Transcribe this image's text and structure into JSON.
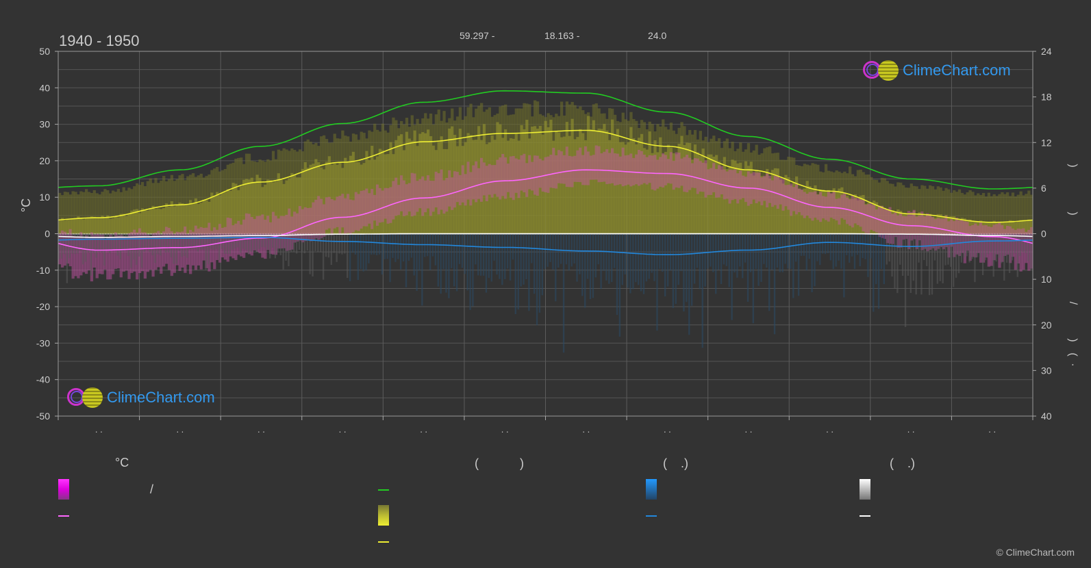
{
  "header": {
    "period": "1940 - 1950",
    "latitude": "59.297 -",
    "longitude": "18.163 -",
    "elevation": "24.0"
  },
  "brand": {
    "name": "ClimeChart.com",
    "copyright": "© ClimeChart.com"
  },
  "colors": {
    "background": "#333333",
    "daylight": "#22cc22",
    "sunshine": "#eeee33",
    "temp_mean": "#ff66ff",
    "precip": "#2288dd",
    "snow": "#ffffff",
    "brand": "#3399ee"
  },
  "chart_data": {
    "type": "line",
    "title": "1940 - 1950",
    "ylabel": "°C",
    "ylim": [
      -50,
      50
    ],
    "y_ticks": [
      "50",
      "40",
      "30",
      "20",
      "10",
      "0",
      "-10",
      "-20",
      "-30",
      "-40",
      "-50"
    ],
    "y2_ticks_top": [
      "24",
      "18",
      "12",
      "6",
      "0"
    ],
    "y2_ticks_bottom": [
      "0",
      "10",
      "20",
      "30",
      "40"
    ],
    "y2_labels": [
      ")",
      ")",
      "/",
      ")",
      "(",
      "·"
    ],
    "x_tick_labels": [
      ". .",
      ". .",
      ". .",
      ". .",
      ". .",
      ". .",
      ". .",
      ". .",
      ". .",
      ". .",
      ". .",
      ". ."
    ],
    "x_months": [
      0,
      1,
      2,
      3,
      4,
      5,
      6,
      7,
      8,
      9,
      10,
      11
    ],
    "series": [
      {
        "key": "daylight",
        "axis": "hours",
        "color": "#22cc22",
        "values": [
          6.3,
          8.4,
          11.5,
          14.5,
          17.3,
          18.8,
          18.5,
          16.0,
          12.8,
          9.8,
          7.2,
          5.9
        ]
      },
      {
        "key": "sunshine",
        "axis": "hours",
        "color": "#eeee33",
        "values": [
          2.1,
          3.8,
          6.8,
          9.4,
          12.1,
          13.2,
          13.6,
          11.5,
          8.4,
          5.6,
          2.6,
          1.5
        ]
      },
      {
        "key": "temp_mean",
        "axis": "celsius",
        "color": "#ff66ff",
        "values": [
          -4.5,
          -3.8,
          -1.2,
          4.5,
          9.8,
          14.5,
          17.5,
          16.5,
          12.5,
          7.2,
          2.2,
          -0.8
        ]
      },
      {
        "key": "precip_mean",
        "axis": "precip_mm",
        "color": "#2288dd",
        "values": [
          1.2,
          1.0,
          0.8,
          1.7,
          2.4,
          3.0,
          3.8,
          4.6,
          3.6,
          1.9,
          2.8,
          1.6
        ]
      },
      {
        "key": "snow_mean",
        "axis": "precip_mm",
        "color": "#ffffff",
        "values": [
          0.8,
          0.6,
          0.4,
          0.1,
          0.0,
          0.0,
          0.0,
          0.0,
          0.0,
          0.0,
          0.1,
          0.4
        ]
      }
    ],
    "temp_range_max": [
      7,
      10,
      15,
      20,
      26,
      31,
      33,
      30,
      24,
      17,
      12,
      8
    ],
    "temp_range_min": [
      -18,
      -16,
      -10,
      -3,
      2,
      6,
      10,
      9,
      5,
      0,
      -8,
      -14
    ]
  },
  "legend": {
    "col1_header": "°C",
    "col1_slash": "/",
    "col2_header": "(            )",
    "col3_header": "(    .)",
    "col4_header": "(    .)"
  }
}
